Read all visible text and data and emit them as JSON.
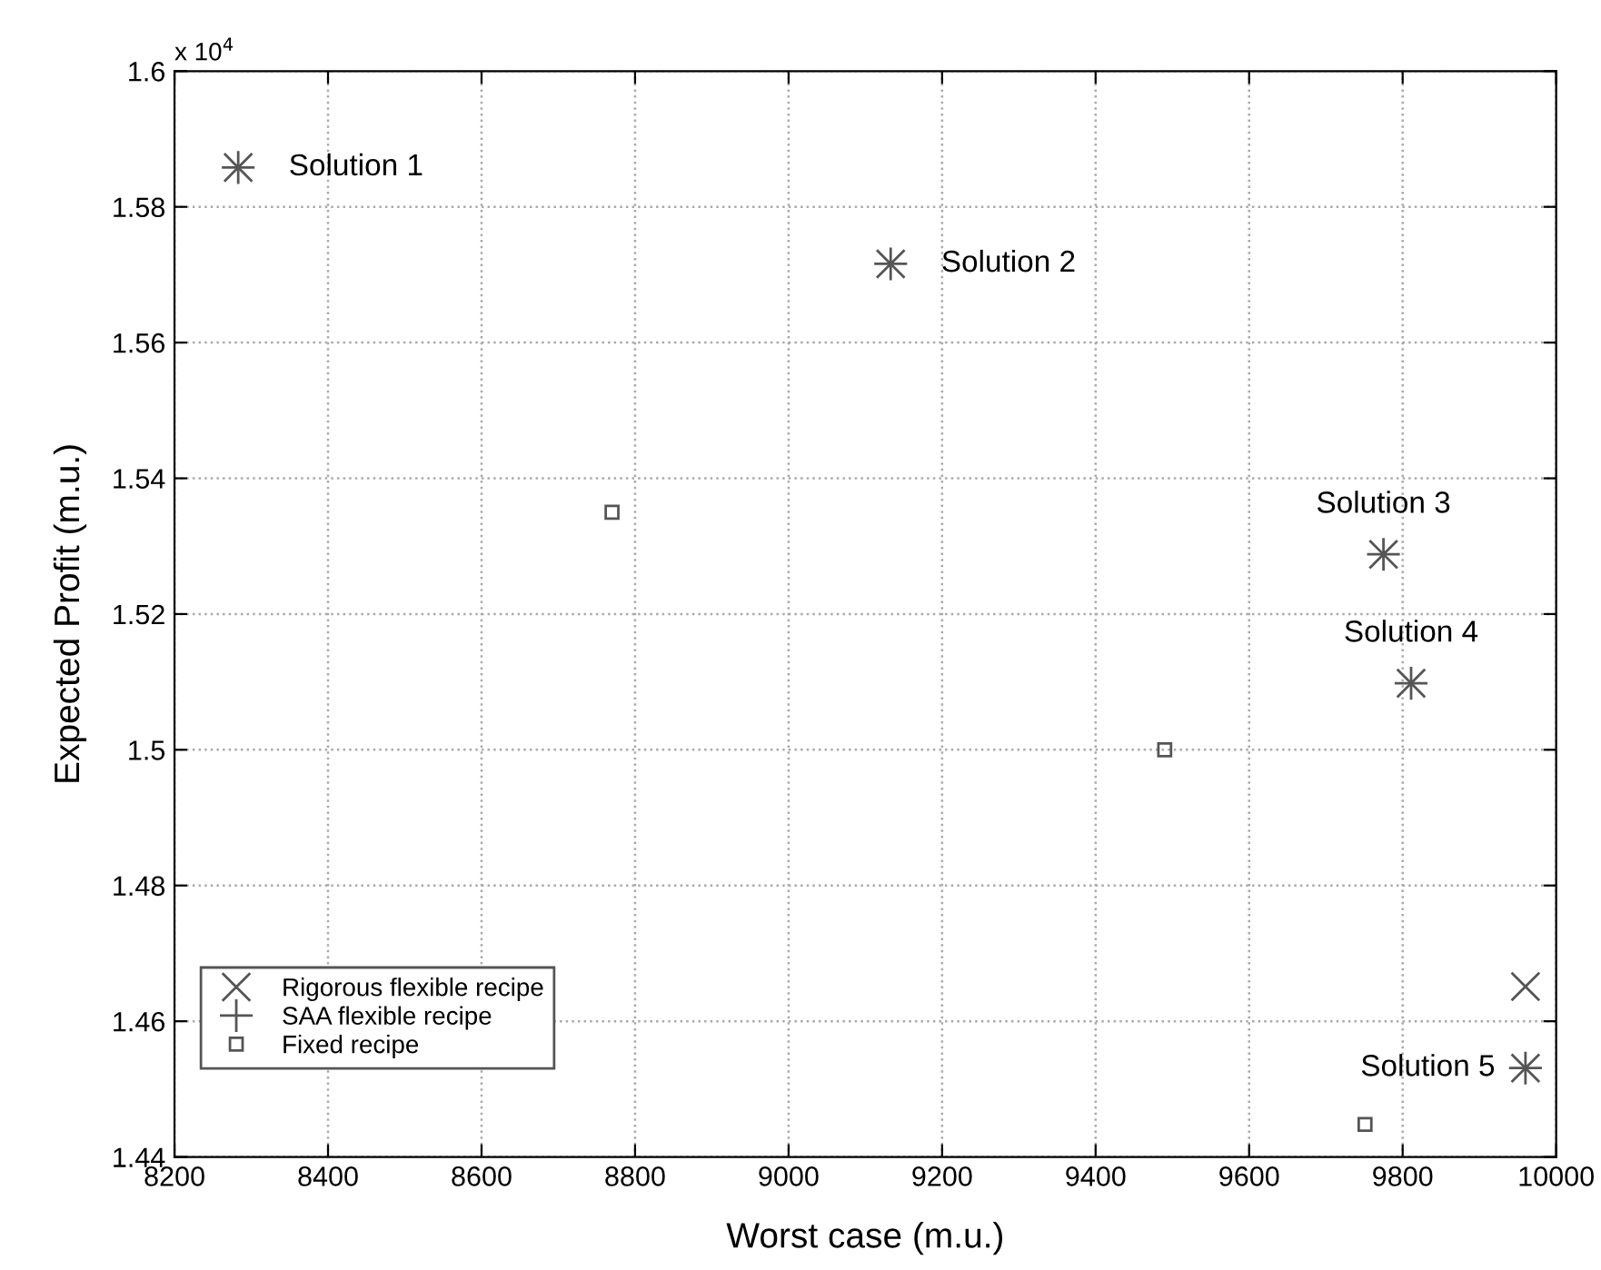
{
  "chart_data": {
    "type": "scatter",
    "xlabel": "Worst case (m.u.)",
    "ylabel": "Expected Profit (m.u.)",
    "xlim": [
      8200,
      10000
    ],
    "xticks": [
      8200,
      8400,
      8600,
      8800,
      9000,
      9200,
      9400,
      9600,
      9800,
      10000
    ],
    "ylim": [
      1.44,
      1.6
    ],
    "yticks": [
      1.44,
      1.46,
      1.48,
      1.5,
      1.52,
      1.54,
      1.56,
      1.58,
      1.6
    ],
    "grid": true,
    "legend": "bottom left",
    "series": [
      {
        "name": "Rigorous flexible recipe",
        "color": "#555555",
        "marker": "cross",
        "x": [
          8283,
          9133,
          9775,
          9811,
          9960,
          9960
        ],
        "values": [
          1.5858,
          1.5716,
          1.5288,
          1.5098,
          1.4531,
          1.4651
        ]
      },
      {
        "name": "SAA flexible recipe",
        "color": "#555555",
        "marker": "plus",
        "x": [
          8283,
          9133,
          9775,
          9811,
          9960
        ],
        "values": [
          1.5858,
          1.5716,
          1.5288,
          1.5098,
          1.4531
        ]
      },
      {
        "name": "Fixed recipe",
        "color": "#555555",
        "marker": "square",
        "x": [
          8770,
          9490,
          9751
        ],
        "values": [
          1.535,
          1.5,
          1.4448
        ]
      }
    ],
    "annotations": [
      "x 10$^{4}$",
      {
        "text": "Solution 1",
        "x": 8283,
        "y": 1.5858
      },
      {
        "text": "Solution 2",
        "x": 9133,
        "y": 1.5716
      },
      {
        "text": "Solution 3",
        "x": 9775,
        "y": 1.5288
      },
      {
        "text": "Solution 4",
        "x": 9811,
        "y": 1.5098
      },
      {
        "text": "Solution 5",
        "x": 9960,
        "y": 1.4531
      }
    ]
  }
}
